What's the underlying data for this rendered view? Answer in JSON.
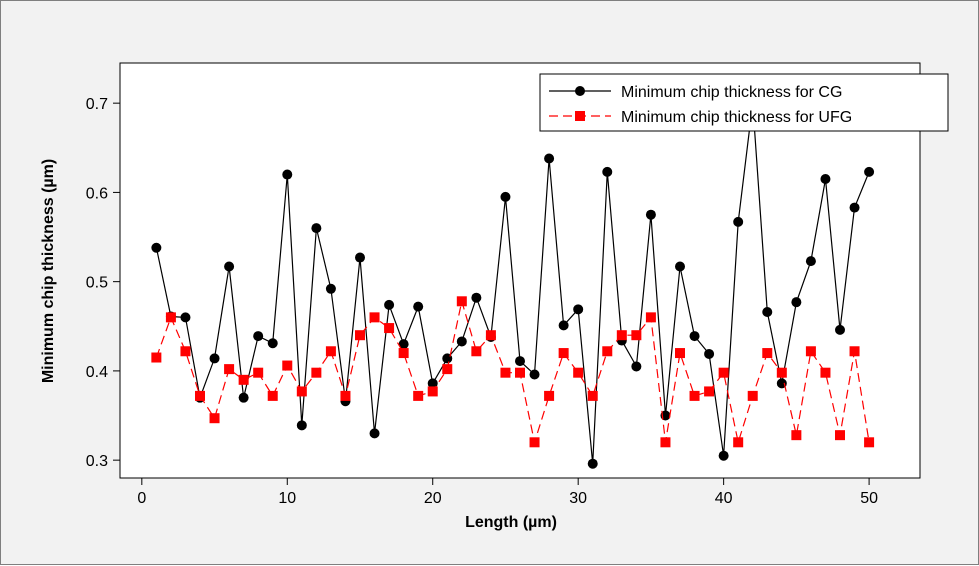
{
  "chart_data": {
    "type": "line",
    "xlabel": "Length (µm)",
    "ylabel": "Minimum chip thickness (µm)",
    "xlim": [
      -1.5,
      53.5
    ],
    "ylim": [
      0.28,
      0.745
    ],
    "xticks": [
      0,
      10,
      20,
      30,
      40,
      50
    ],
    "yticks": [
      0.3,
      0.4,
      0.5,
      0.6,
      0.7
    ],
    "xtick_labels": [
      "0",
      "10",
      "20",
      "30",
      "40",
      "50"
    ],
    "ytick_labels": [
      "0.3",
      "0.4",
      "0.5",
      "0.6",
      "0.7"
    ],
    "grid": false,
    "legend_position": "top-right",
    "x": [
      1,
      2,
      3,
      4,
      5,
      6,
      7,
      8,
      9,
      10,
      11,
      12,
      13,
      14,
      15,
      16,
      17,
      18,
      19,
      20,
      21,
      22,
      23,
      24,
      25,
      26,
      27,
      28,
      29,
      30,
      31,
      32,
      33,
      34,
      35,
      36,
      37,
      38,
      39,
      40,
      41,
      42,
      43,
      44,
      45,
      46,
      47,
      48,
      49,
      50
    ],
    "series": [
      {
        "name": "Minimum chip thickness for CG",
        "color": "#000000",
        "line_style": "solid",
        "marker": "circle",
        "values": [
          0.538,
          0.461,
          0.46,
          0.37,
          0.414,
          0.517,
          0.37,
          0.439,
          0.431,
          0.62,
          0.339,
          0.56,
          0.492,
          0.366,
          0.527,
          0.33,
          0.474,
          0.43,
          0.472,
          0.386,
          0.414,
          0.433,
          0.482,
          0.438,
          0.595,
          0.411,
          0.396,
          0.638,
          0.451,
          0.469,
          0.296,
          0.623,
          0.434,
          0.405,
          0.575,
          0.35,
          0.517,
          0.439,
          0.419,
          0.305,
          0.567,
          0.7,
          0.466,
          0.386,
          0.477,
          0.523,
          0.615,
          0.446,
          0.583,
          0.623
        ]
      },
      {
        "name": "Minimum chip thickness for UFG",
        "color": "#ff0000",
        "line_style": "dashed",
        "marker": "square",
        "values": [
          0.415,
          0.46,
          0.422,
          0.372,
          0.347,
          0.402,
          0.39,
          0.398,
          0.372,
          0.406,
          0.377,
          0.398,
          0.422,
          0.372,
          0.44,
          0.46,
          0.448,
          0.42,
          0.372,
          0.377,
          0.402,
          0.478,
          0.422,
          0.44,
          0.398,
          0.398,
          0.32,
          0.372,
          0.42,
          0.398,
          0.372,
          0.422,
          0.44,
          0.44,
          0.46,
          0.32,
          0.42,
          0.372,
          0.377,
          0.398,
          0.32,
          0.372,
          0.42,
          0.398,
          0.328,
          0.422,
          0.398,
          0.328,
          0.422,
          0.32
        ]
      }
    ]
  }
}
